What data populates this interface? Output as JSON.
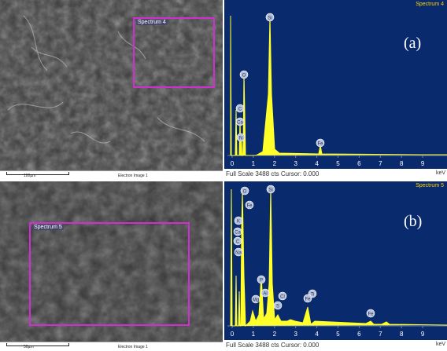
{
  "panels": [
    {
      "id": "a",
      "panel_label": "(a)",
      "sem": {
        "spectrum_box_label": "Spectrum 4",
        "scale_label": "100µm",
        "image_label": "Electron Image 1"
      },
      "eds": {
        "title": "Spectrum 4",
        "footer": "Full Scale 3488 cts Cursor: 0.000",
        "x_unit": "keV",
        "x_ticks": [
          "0",
          "1",
          "2",
          "3",
          "4",
          "5",
          "6",
          "7",
          "8",
          "9"
        ],
        "element_labels": [
          "Si",
          "O",
          "C",
          "Ca",
          "N",
          "Fe"
        ]
      }
    },
    {
      "id": "b",
      "panel_label": "(b)",
      "sem": {
        "spectrum_box_label": "Spectrum 5",
        "scale_label": "50µm",
        "image_label": "Electron Image 1"
      },
      "eds": {
        "title": "Spectrum 5",
        "footer": "Full Scale 3488 cts Cursor: 0.000",
        "x_unit": "keV",
        "x_ticks": [
          "0",
          "1",
          "2",
          "3",
          "4",
          "5",
          "6",
          "7",
          "8",
          "9"
        ],
        "element_labels": [
          "O",
          "Si",
          "Fe",
          "K",
          "Ca",
          "C",
          "Na",
          "Mg",
          "Al",
          "P",
          "S",
          "Cl",
          "Ti",
          "Fe",
          "Fe"
        ]
      }
    }
  ],
  "colors": {
    "spectrum_box": "#d12ed1",
    "eds_background": "#0a2a6e",
    "eds_trace": "#ffff2a",
    "spectrum_title": "#ffd400"
  }
}
